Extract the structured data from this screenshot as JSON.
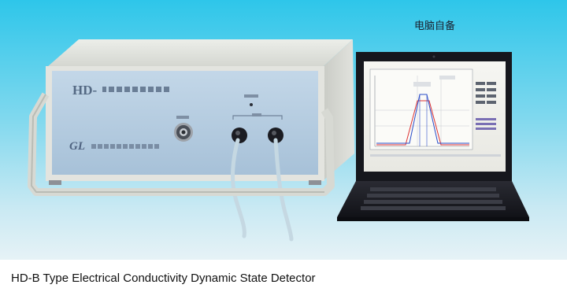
{
  "photo": {
    "laptop_note": "电脑自备",
    "device_brand": "HD-",
    "brand_logo": "GL"
  },
  "caption": "HD-B Type Electrical Conductivity Dynamic State Detector",
  "colors": {
    "sky_top": "#35c8ea",
    "sky_bottom": "#e4f1f6",
    "device_face": "#b2cbe0",
    "device_cabinet": "#d9dbd6",
    "laptop_body": "#15161c"
  }
}
